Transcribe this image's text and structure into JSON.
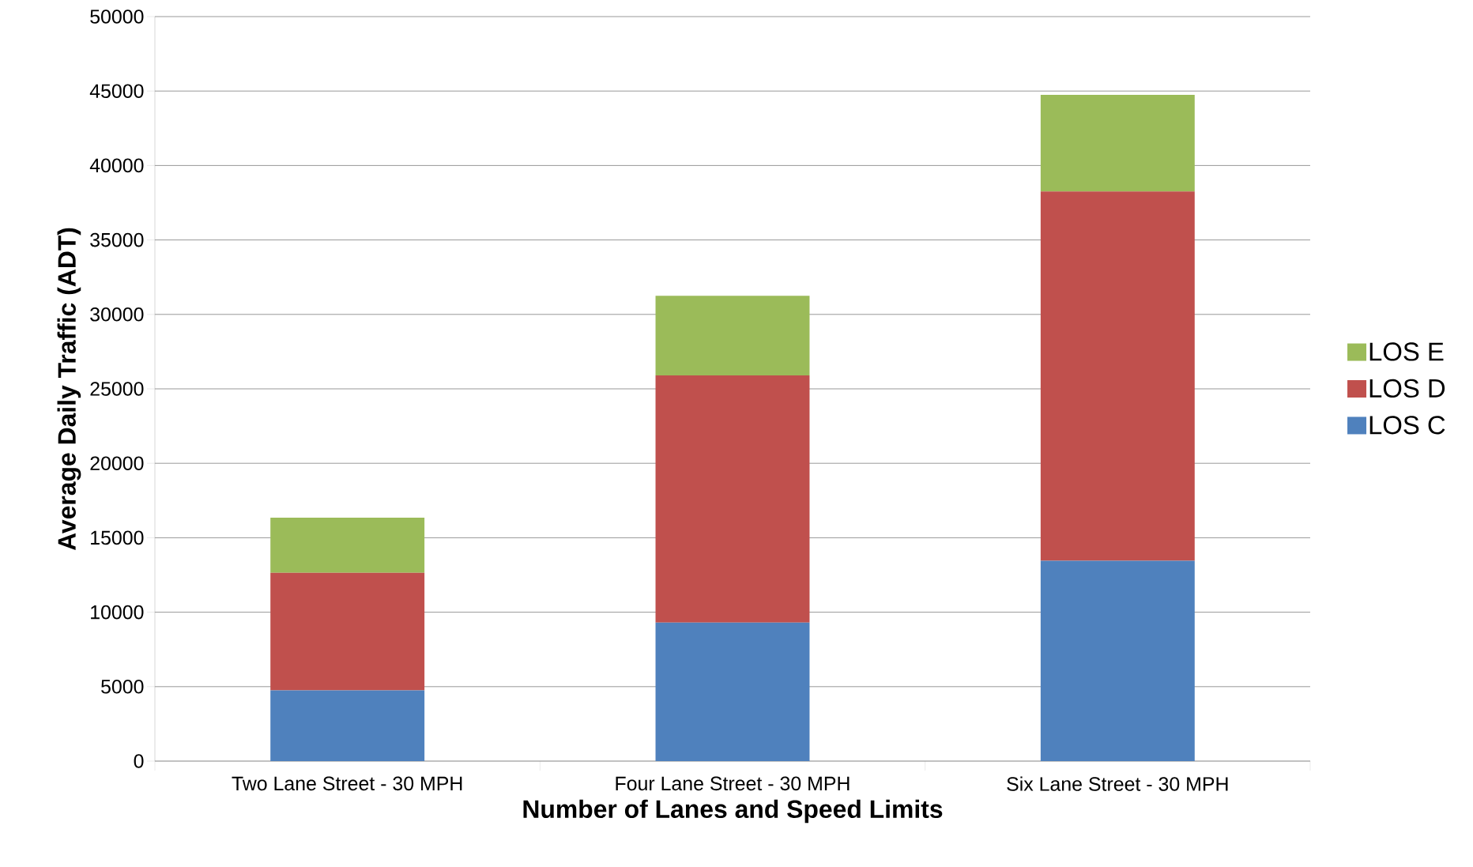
{
  "chart_data": {
    "type": "bar",
    "stacked": true,
    "xlabel": "Number of Lanes and Speed Limits",
    "ylabel": "Average Daily Traffic (ADT)",
    "categories": [
      "Two Lane Street - 30 MPH",
      "Four Lane Street - 30 MPH",
      "Six Lane Street - 30 MPH"
    ],
    "series": [
      {
        "name": "LOS C",
        "color": "#4f81bd",
        "values": [
          4750,
          9300,
          13450
        ]
      },
      {
        "name": "LOS D",
        "color": "#c0504d",
        "values": [
          7900,
          16600,
          24800
        ]
      },
      {
        "name": "LOS E",
        "color": "#9bbb59",
        "values": [
          3700,
          5350,
          6500
        ]
      }
    ],
    "ylim": [
      0,
      50000
    ],
    "yticks": [
      0,
      5000,
      10000,
      15000,
      20000,
      25000,
      30000,
      35000,
      40000,
      45000,
      50000
    ],
    "grid": "y",
    "legend": "right"
  }
}
